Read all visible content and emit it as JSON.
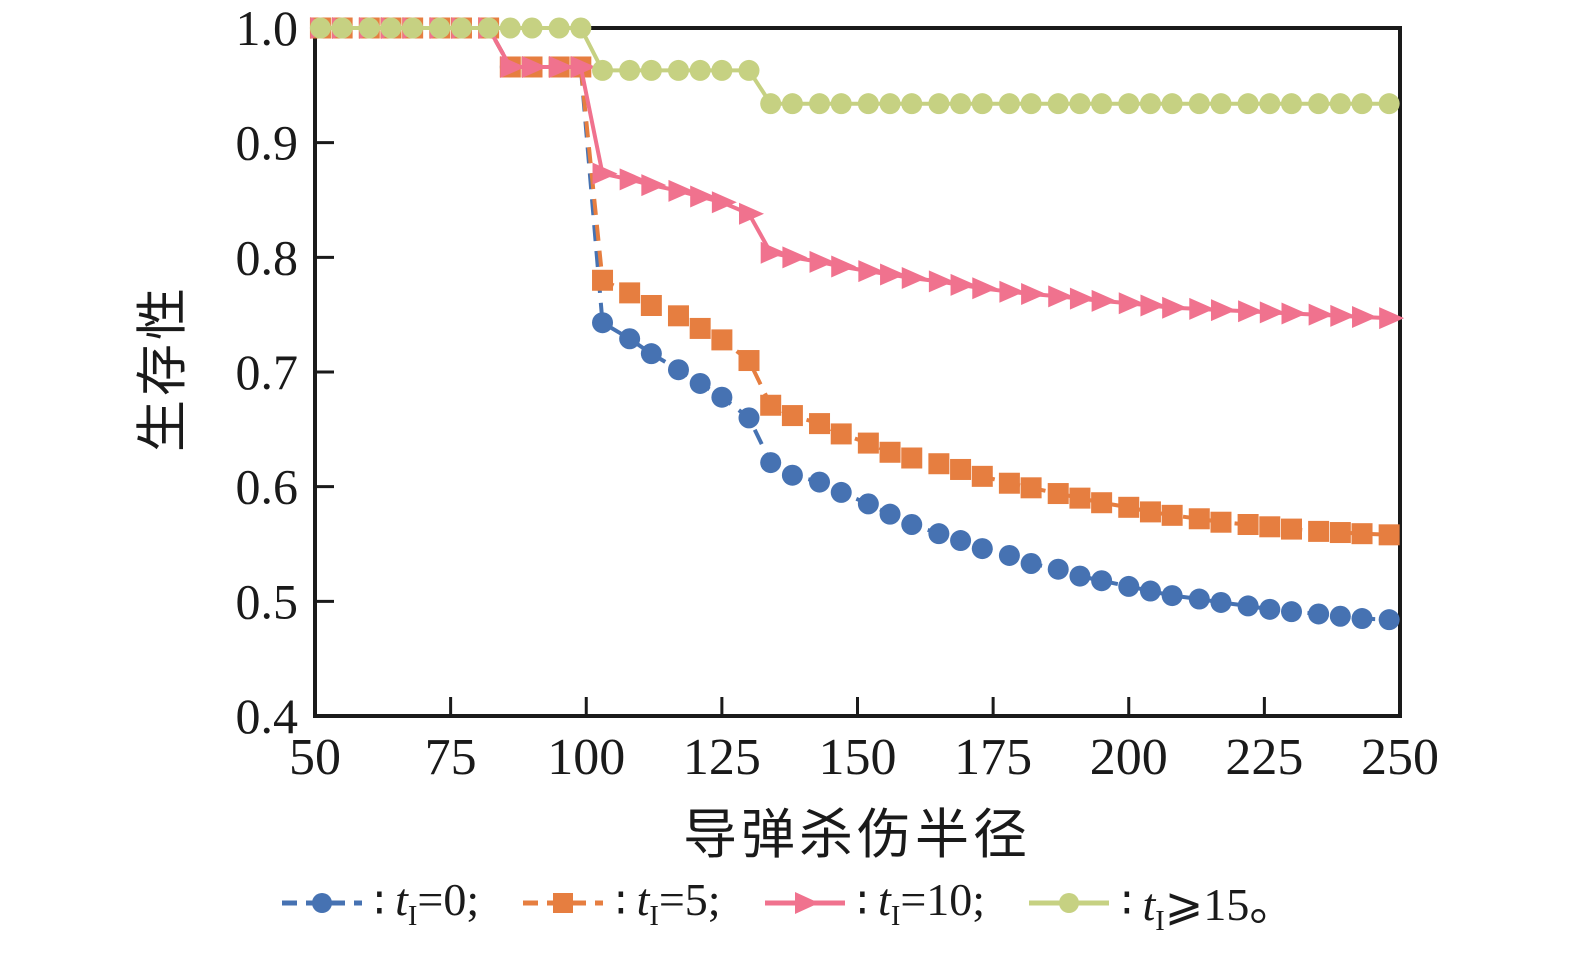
{
  "chart_data": {
    "type": "line",
    "title": "",
    "xlabel": "导弹杀伤半径",
    "ylabel": "生存性",
    "xlim": [
      50,
      250
    ],
    "ylim": [
      0.4,
      1.0
    ],
    "xticks": [
      50,
      75,
      100,
      125,
      150,
      175,
      200,
      225,
      250
    ],
    "yticks": [
      1.0,
      0.9,
      0.8,
      0.7,
      0.6,
      0.5,
      0.4
    ],
    "ytick_labels": [
      "1.0",
      "0.9",
      "0.8",
      "0.7",
      "0.6",
      "0.5",
      "0.4"
    ],
    "grid": false,
    "legend_position": "below-chart",
    "legend_separator": "∶",
    "axis_color": "#1a1a1a",
    "background_color": "#ffffff",
    "x_shared": [
      51,
      55,
      60,
      64,
      68,
      73,
      77,
      82,
      86,
      90,
      95,
      99,
      103,
      108,
      112,
      117,
      121,
      125,
      130,
      134,
      138,
      143,
      147,
      152,
      156,
      160,
      165,
      169,
      173,
      178,
      182,
      187,
      191,
      195,
      200,
      204,
      208,
      213,
      217,
      222,
      226,
      230,
      235,
      239,
      243,
      248
    ],
    "series": [
      {
        "id": "t0",
        "name": "tI=0",
        "label_var": "t",
        "label_sub": "I",
        "label_rest": "=0;",
        "color": "#4672B2",
        "marker": "circle",
        "line": "dashed",
        "y": [
          1.0,
          1.0,
          1.0,
          1.0,
          1.0,
          1.0,
          1.0,
          1.0,
          0.966,
          0.966,
          0.966,
          0.966,
          0.743,
          0.729,
          0.716,
          0.702,
          0.69,
          0.678,
          0.66,
          0.621,
          0.61,
          0.604,
          0.595,
          0.585,
          0.576,
          0.567,
          0.559,
          0.553,
          0.546,
          0.54,
          0.533,
          0.528,
          0.522,
          0.518,
          0.513,
          0.509,
          0.505,
          0.502,
          0.499,
          0.496,
          0.493,
          0.491,
          0.489,
          0.487,
          0.485,
          0.484
        ]
      },
      {
        "id": "t5",
        "name": "tI=5",
        "label_var": "t",
        "label_sub": "I",
        "label_rest": "=5;",
        "color": "#E67E40",
        "marker": "square",
        "line": "dashed",
        "y": [
          1.0,
          1.0,
          1.0,
          1.0,
          1.0,
          1.0,
          1.0,
          1.0,
          0.966,
          0.966,
          0.966,
          0.966,
          0.78,
          0.769,
          0.758,
          0.749,
          0.738,
          0.728,
          0.71,
          0.671,
          0.662,
          0.655,
          0.646,
          0.638,
          0.63,
          0.625,
          0.62,
          0.615,
          0.609,
          0.603,
          0.599,
          0.594,
          0.59,
          0.586,
          0.582,
          0.578,
          0.575,
          0.572,
          0.569,
          0.567,
          0.565,
          0.563,
          0.561,
          0.56,
          0.559,
          0.558
        ]
      },
      {
        "id": "t10",
        "name": "tI=10",
        "label_var": "t",
        "label_sub": "I",
        "label_rest": "=10;",
        "color": "#F0728E",
        "marker": "triangle-right",
        "line": "solid",
        "y": [
          1.0,
          1.0,
          1.0,
          1.0,
          1.0,
          1.0,
          1.0,
          1.0,
          0.966,
          0.966,
          0.966,
          0.966,
          0.873,
          0.868,
          0.863,
          0.858,
          0.853,
          0.848,
          0.838,
          0.804,
          0.8,
          0.796,
          0.792,
          0.788,
          0.785,
          0.782,
          0.779,
          0.776,
          0.773,
          0.77,
          0.768,
          0.766,
          0.764,
          0.762,
          0.76,
          0.758,
          0.756,
          0.755,
          0.754,
          0.753,
          0.752,
          0.751,
          0.75,
          0.749,
          0.748,
          0.747
        ]
      },
      {
        "id": "t15plus",
        "name": "tI>=15",
        "label_var": "t",
        "label_sub": "I",
        "label_rest": "⩾15。",
        "color": "#C6D182",
        "marker": "circle",
        "line": "solid",
        "y": [
          1.0,
          1.0,
          1.0,
          1.0,
          1.0,
          1.0,
          1.0,
          1.0,
          1.0,
          1.0,
          1.0,
          1.0,
          0.963,
          0.963,
          0.963,
          0.963,
          0.963,
          0.963,
          0.963,
          0.934,
          0.934,
          0.934,
          0.934,
          0.934,
          0.934,
          0.934,
          0.934,
          0.934,
          0.934,
          0.934,
          0.934,
          0.934,
          0.934,
          0.934,
          0.934,
          0.934,
          0.934,
          0.934,
          0.934,
          0.934,
          0.934,
          0.934,
          0.934,
          0.934,
          0.934,
          0.934
        ]
      }
    ]
  }
}
